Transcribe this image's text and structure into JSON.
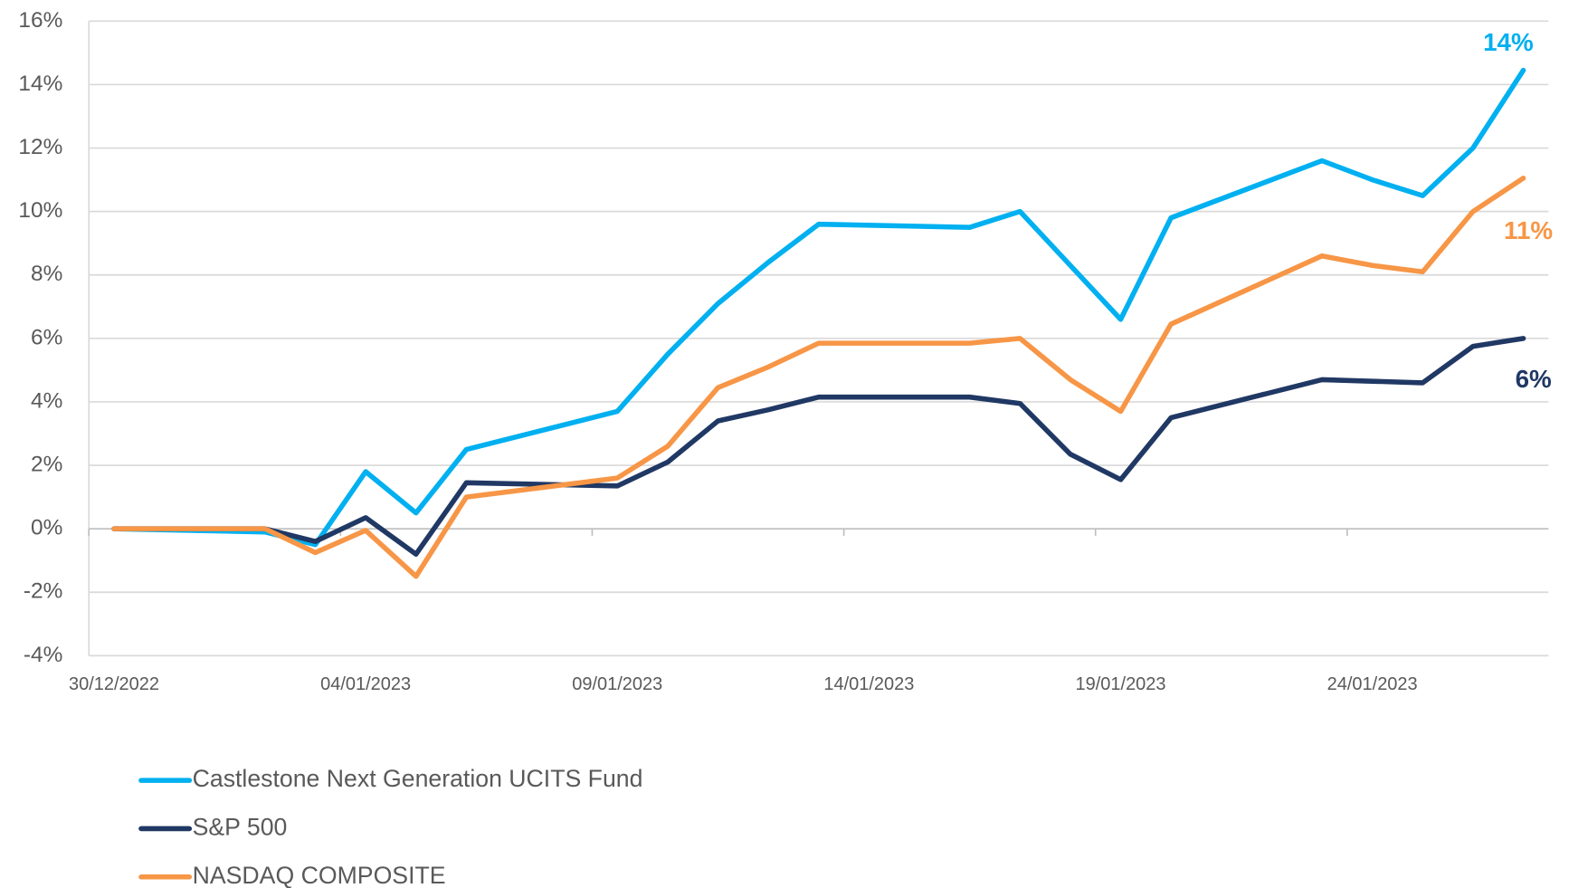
{
  "chart_data": {
    "type": "line",
    "x": [
      "30/12/2022",
      "02/01/2023",
      "03/01/2023",
      "04/01/2023",
      "05/01/2023",
      "06/01/2023",
      "09/01/2023",
      "10/01/2023",
      "11/01/2023",
      "12/01/2023",
      "13/01/2023",
      "16/01/2023",
      "17/01/2023",
      "18/01/2023",
      "19/01/2023",
      "20/01/2023",
      "23/01/2023",
      "24/01/2023",
      "25/01/2023",
      "26/01/2023",
      "27/01/2023"
    ],
    "xlim": [
      "30/12/2022",
      "27/01/2023"
    ],
    "xticks": [
      "30/12/2022",
      "04/01/2023",
      "09/01/2023",
      "14/01/2023",
      "19/01/2023",
      "24/01/2023"
    ],
    "ylim": [
      -4,
      16
    ],
    "yticks": [
      {
        "value": -4,
        "label": "-4%"
      },
      {
        "value": -2,
        "label": "-2%"
      },
      {
        "value": 0,
        "label": "0%"
      },
      {
        "value": 2,
        "label": "2%"
      },
      {
        "value": 4,
        "label": "4%"
      },
      {
        "value": 6,
        "label": "6%"
      },
      {
        "value": 8,
        "label": "8%"
      },
      {
        "value": 10,
        "label": "10%"
      },
      {
        "value": 12,
        "label": "12%"
      },
      {
        "value": 14,
        "label": "14%"
      },
      {
        "value": 16,
        "label": "16%"
      }
    ],
    "grid": true,
    "legend": "bottom-left",
    "series": [
      {
        "name": "Castlestone Next Generation UCITS Fund",
        "color": "#00b0f0",
        "values": [
          0,
          -0.1,
          -0.5,
          1.8,
          0.5,
          2.5,
          3.7,
          5.5,
          7.1,
          8.4,
          9.6,
          9.5,
          10.0,
          8.3,
          6.6,
          9.8,
          11.6,
          11.0,
          10.5,
          12.0,
          14.45
        ],
        "value_labels": [
          null,
          null,
          null,
          null,
          null,
          null,
          null,
          null,
          null,
          null,
          null,
          null,
          null,
          null,
          null,
          null,
          null,
          null,
          null,
          null,
          "14%"
        ]
      },
      {
        "name": "S&P 500",
        "color": "#203864",
        "values": [
          0,
          0,
          -0.4,
          0.35,
          -0.8,
          1.45,
          1.35,
          2.1,
          3.4,
          3.75,
          4.15,
          4.15,
          3.95,
          2.35,
          1.55,
          3.5,
          4.7,
          4.65,
          4.6,
          5.75,
          6.0
        ],
        "value_labels": [
          null,
          null,
          null,
          null,
          null,
          null,
          null,
          null,
          null,
          null,
          null,
          null,
          null,
          null,
          null,
          null,
          null,
          null,
          null,
          null,
          "6%"
        ]
      },
      {
        "name": "NASDAQ COMPOSITE",
        "color": "#f79646",
        "values": [
          0,
          0,
          -0.75,
          -0.05,
          -1.5,
          1.0,
          1.6,
          2.6,
          4.45,
          5.1,
          5.85,
          5.85,
          6.0,
          4.7,
          3.7,
          6.45,
          8.6,
          8.3,
          8.1,
          10.0,
          11.05
        ],
        "value_labels": [
          null,
          null,
          null,
          null,
          null,
          null,
          null,
          null,
          null,
          null,
          null,
          null,
          null,
          null,
          null,
          null,
          null,
          null,
          null,
          null,
          "11%"
        ]
      }
    ]
  }
}
